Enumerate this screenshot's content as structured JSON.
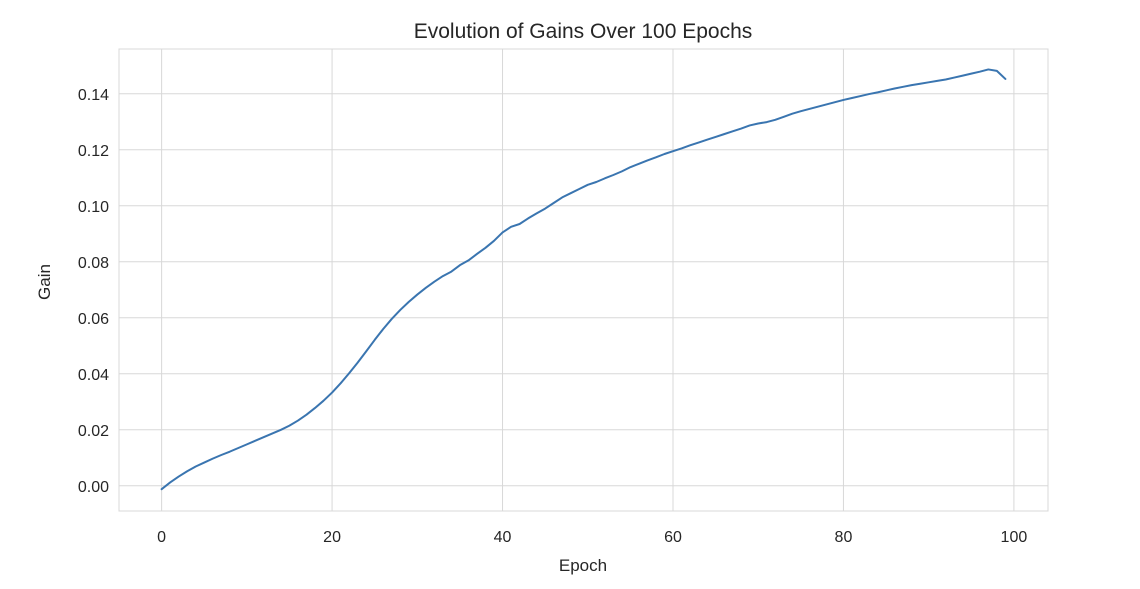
{
  "chart_data": {
    "type": "line",
    "title": "Evolution of Gains Over 100 Epochs",
    "xlabel": "Epoch",
    "ylabel": "Gain",
    "xlim": [
      -5,
      104
    ],
    "ylim": [
      -0.009,
      0.156
    ],
    "xticks": [
      0,
      20,
      40,
      60,
      80,
      100
    ],
    "xtick_labels": [
      "0",
      "20",
      "40",
      "60",
      "80",
      "100"
    ],
    "yticks": [
      0.0,
      0.02,
      0.04,
      0.06,
      0.08,
      0.1,
      0.12,
      0.14
    ],
    "ytick_labels": [
      "0.00",
      "0.02",
      "0.04",
      "0.06",
      "0.08",
      "0.10",
      "0.12",
      "0.14"
    ],
    "grid": true,
    "legend": "none",
    "colors": {
      "line": "#3a75b0",
      "grid": "#d8d8d8",
      "background": "#ffffff"
    },
    "series": [
      {
        "x": [
          0,
          1,
          2,
          3,
          4,
          5,
          6,
          7,
          8,
          9,
          10,
          11,
          12,
          13,
          14,
          15,
          16,
          17,
          18,
          19,
          20,
          21,
          22,
          23,
          24,
          25,
          26,
          27,
          28,
          29,
          30,
          31,
          32,
          33,
          34,
          35,
          36,
          37,
          38,
          39,
          40,
          41,
          42,
          43,
          44,
          45,
          46,
          47,
          48,
          49,
          50,
          51,
          52,
          53,
          54,
          55,
          56,
          57,
          58,
          59,
          60,
          61,
          62,
          63,
          64,
          65,
          66,
          67,
          68,
          69,
          70,
          71,
          72,
          73,
          74,
          75,
          76,
          77,
          78,
          79,
          80,
          81,
          82,
          83,
          84,
          85,
          86,
          87,
          88,
          89,
          90,
          91,
          92,
          93,
          94,
          95,
          96,
          97,
          98,
          99
        ],
        "values": [
          -0.0012,
          0.0012,
          0.0033,
          0.0052,
          0.0069,
          0.0083,
          0.0097,
          0.011,
          0.0122,
          0.0135,
          0.0148,
          0.0161,
          0.0174,
          0.0187,
          0.02,
          0.0215,
          0.0233,
          0.0254,
          0.0278,
          0.0304,
          0.0333,
          0.0366,
          0.0402,
          0.044,
          0.048,
          0.0521,
          0.056,
          0.0596,
          0.0628,
          0.0657,
          0.0683,
          0.0707,
          0.0729,
          0.0749,
          0.0765,
          0.0788,
          0.0805,
          0.0828,
          0.085,
          0.0875,
          0.0905,
          0.0925,
          0.0935,
          0.0955,
          0.0973,
          0.099,
          0.101,
          0.103,
          0.1045,
          0.106,
          0.1075,
          0.1085,
          0.1098,
          0.111,
          0.1123,
          0.1138,
          0.115,
          0.1162,
          0.1173,
          0.1185,
          0.1195,
          0.1205,
          0.1216,
          0.1226,
          0.1236,
          0.1246,
          0.1256,
          0.1266,
          0.1276,
          0.1287,
          0.1294,
          0.1299,
          0.1307,
          0.1318,
          0.1329,
          0.1338,
          0.1346,
          0.1354,
          0.1362,
          0.137,
          0.1378,
          0.1385,
          0.1392,
          0.1399,
          0.1405,
          0.1412,
          0.1419,
          0.1425,
          0.1431,
          0.1436,
          0.1441,
          0.1446,
          0.1451,
          0.1458,
          0.1465,
          0.1472,
          0.1479,
          0.1487,
          0.1482,
          0.1453
        ]
      }
    ]
  }
}
